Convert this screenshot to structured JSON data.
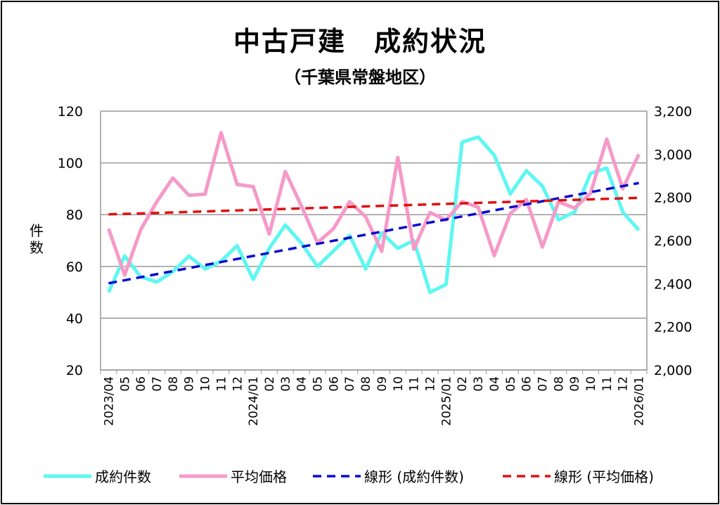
{
  "chart_data": {
    "type": "line",
    "title": "中古戸建　成約状況",
    "subtitle": "（千葉県常盤地区）",
    "ylabel": "件数",
    "y_left_range": [
      20,
      120
    ],
    "y_left_ticks": [
      "20",
      "40",
      "60",
      "80",
      "100",
      "120"
    ],
    "y_right_range": [
      2000,
      3200
    ],
    "y_right_ticks": [
      "2,000",
      "2,200",
      "2,400",
      "2,600",
      "2,800",
      "3,000",
      "3,200"
    ],
    "grid": true,
    "legend_position": "bottom",
    "categories": [
      "2023/04",
      "05",
      "06",
      "07",
      "08",
      "09",
      "10",
      "11",
      "12",
      "2024/01",
      "02",
      "03",
      "04",
      "05",
      "06",
      "07",
      "08",
      "09",
      "10",
      "11",
      "12",
      "2025/01",
      "02",
      "03",
      "04",
      "05",
      "06",
      "07",
      "08",
      "09",
      "10",
      "11",
      "12",
      "2026/01"
    ],
    "series": [
      {
        "name": "成約件数",
        "axis": "left",
        "color": "#5ef7f2",
        "values": [
          50,
          64,
          56,
          54,
          58,
          64,
          59,
          62,
          68,
          55,
          67,
          76,
          69,
          60,
          66,
          72,
          59,
          73,
          67,
          70,
          50,
          53,
          108,
          110,
          103,
          88,
          97,
          91,
          78,
          81,
          96,
          98,
          81,
          74
        ]
      },
      {
        "name": "平均価格",
        "axis": "right",
        "color": "#f59ac8",
        "values": [
          2655,
          2440,
          2650,
          2780,
          2890,
          2810,
          2815,
          3100,
          2860,
          2850,
          2630,
          2920,
          2760,
          2590,
          2655,
          2780,
          2710,
          2550,
          2985,
          2560,
          2730,
          2695,
          2780,
          2755,
          2530,
          2725,
          2790,
          2570,
          2780,
          2750,
          2820,
          3070,
          2840,
          3000
        ]
      },
      {
        "name": "線形 (成約件数)",
        "axis": "left",
        "color": "#0a0ad0",
        "trend_of": "成約件数"
      },
      {
        "name": "線形 (平均価格)",
        "axis": "right",
        "color": "#e01010",
        "trend_of": "平均価格"
      }
    ]
  }
}
